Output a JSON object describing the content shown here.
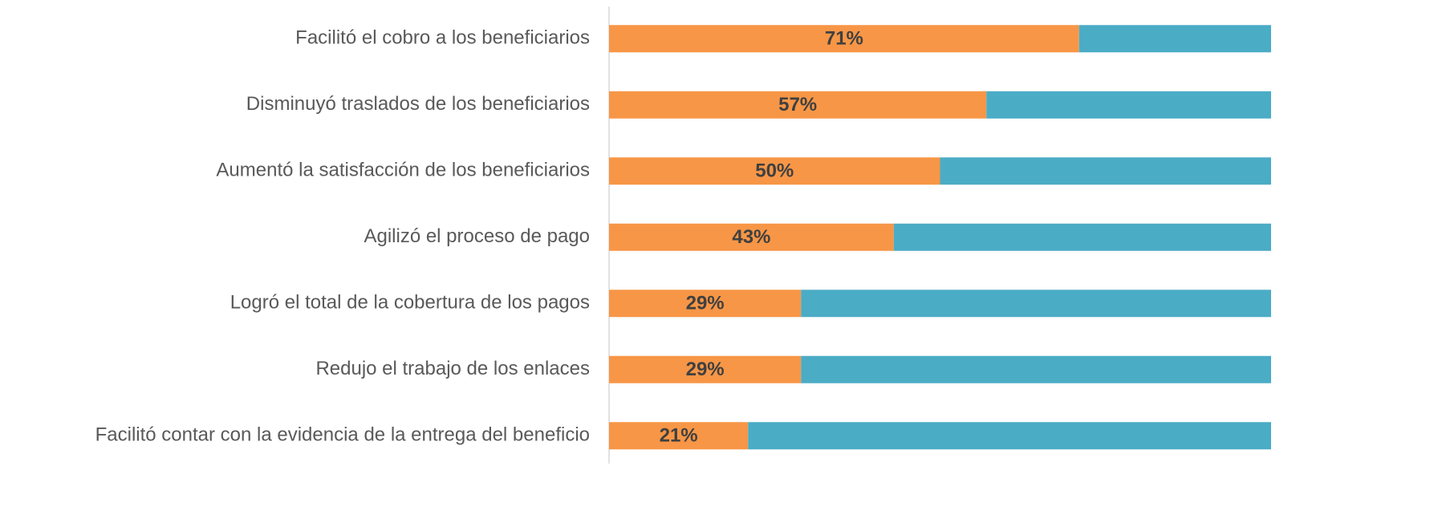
{
  "chart_data": {
    "type": "stacked_bar_horizontal",
    "categories": [
      "Facilitó el cobro a los beneficiarios",
      "Disminuyó traslados de los beneficiarios",
      "Aumentó la satisfacción de los beneficiarios",
      "Agilizó el proceso de pago",
      "Logró el total de la cobertura de los pagos",
      "Redujo el trabajo de los enlaces",
      "Facilitó contar con la evidencia de la entrega del beneficio"
    ],
    "series": [
      {
        "color": "#f79646",
        "values": [
          71,
          57,
          50,
          43,
          29,
          29,
          21
        ],
        "value_labels": [
          "71%",
          "57%",
          "50%",
          "43%",
          "29%",
          "29%",
          "21%"
        ]
      },
      {
        "color": "#4bacc6",
        "values": [
          29,
          43,
          50,
          57,
          71,
          71,
          79
        ]
      }
    ],
    "xlim": [
      0,
      100
    ]
  }
}
